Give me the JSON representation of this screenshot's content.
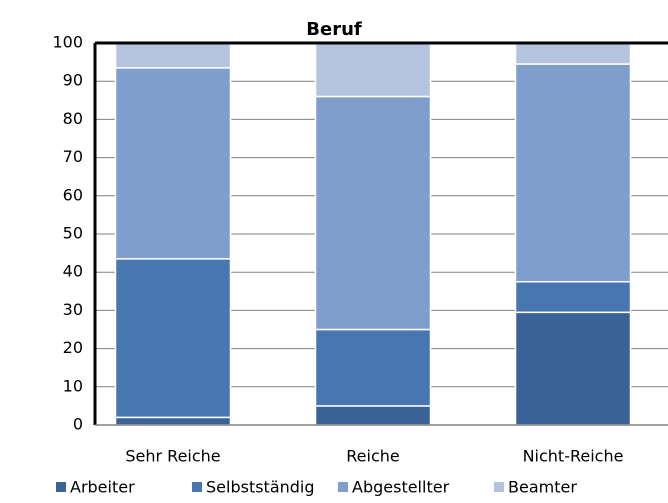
{
  "chart_data": {
    "type": "stacked_bar",
    "title": "Beruf",
    "categories": [
      "Sehr Reiche",
      "Reiche",
      "Nicht-Reiche"
    ],
    "series": [
      {
        "name": "Arbeiter",
        "color": "#3b6298",
        "values": [
          2,
          5,
          29.5
        ]
      },
      {
        "name": "Selbstständig",
        "color": "#4876b0",
        "values": [
          41.5,
          20,
          8
        ]
      },
      {
        "name": "Abgestellter",
        "color": "#7f9ecb",
        "values": [
          50,
          61,
          57
        ]
      },
      {
        "name": "Beamter",
        "color": "#b4c4df",
        "values": [
          6.5,
          14,
          5.5
        ]
      }
    ],
    "ylim": [
      0,
      100
    ],
    "yticks": [
      0,
      10,
      20,
      30,
      40,
      50,
      60,
      70,
      80,
      90,
      100
    ],
    "grid": true
  }
}
